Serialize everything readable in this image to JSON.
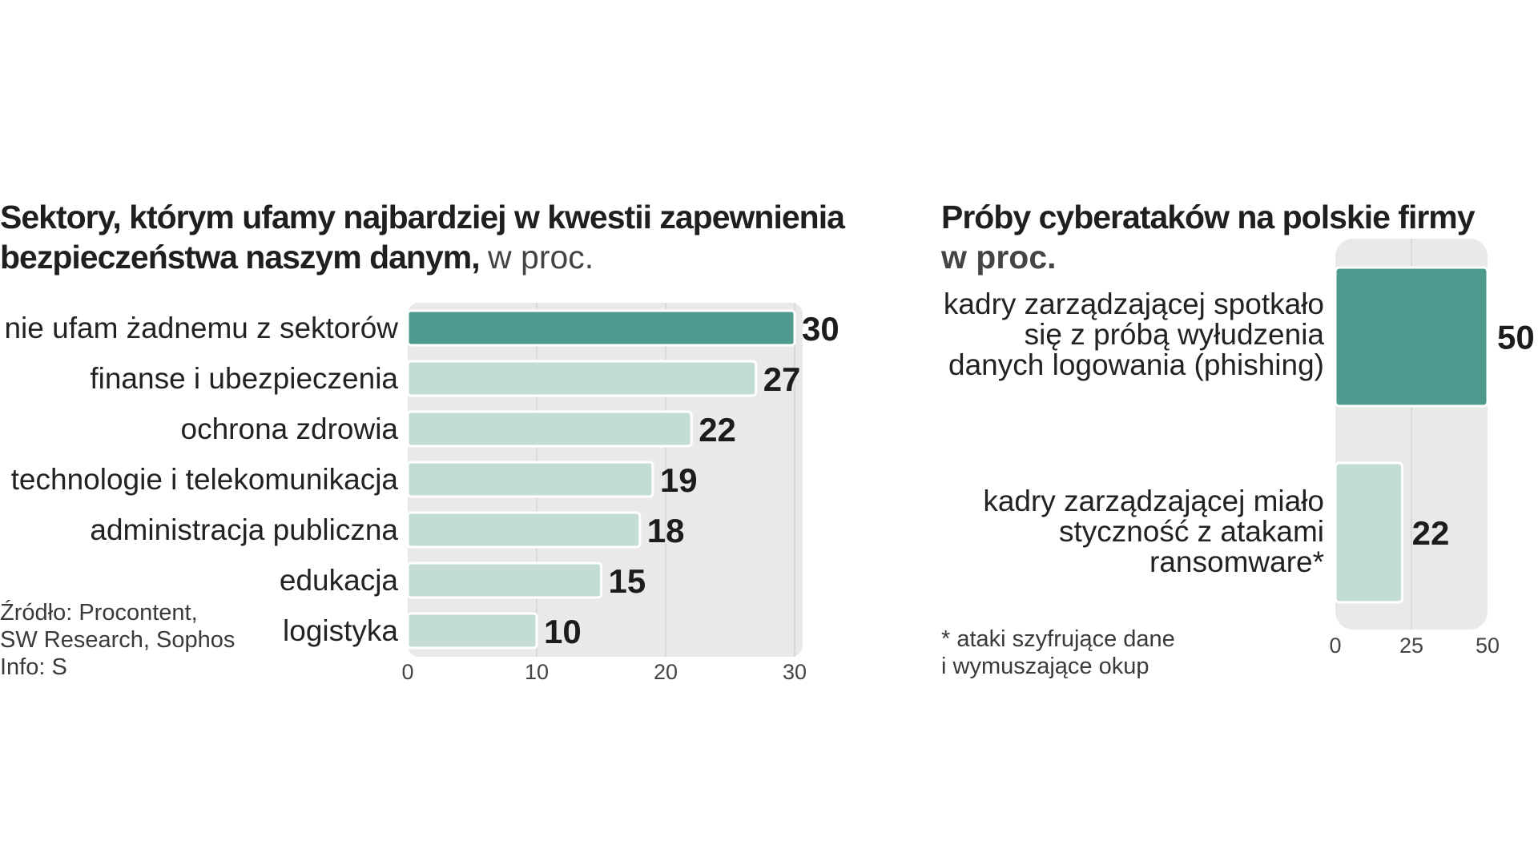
{
  "left_chart_title": {
    "bold": "Sektory, którym ufamy najbardziej w kwestii zapewnienia bezpieczeństwa naszym danym,",
    "normal": "w proc."
  },
  "right_chart_title": {
    "bold": "Próby cyberataków na polskie firmy",
    "normal": "w proc."
  },
  "source": {
    "line1": "Źródło: Procontent,",
    "line2": "SW Research, Sophos",
    "line3": "Info: S"
  },
  "footnote": {
    "line1": "* ataki szyfrujące dane",
    "line2": "i wymuszające okup"
  },
  "colors": {
    "highlight": "#4e9a8e",
    "normal": "#c3ddd6",
    "panel": "#e9e9e9",
    "grid": "#d4d4d4"
  },
  "chart_data": [
    {
      "type": "bar",
      "orientation": "horizontal",
      "title": "Sektory, którym ufamy najbardziej w kwestii zapewnienia bezpieczeństwa naszym danym, w proc.",
      "categories": [
        "nie ufam żadnemu z sektorów",
        "finanse i ubezpieczenia",
        "ochrona zdrowia",
        "technologie i telekomunikacja",
        "administracja publiczna",
        "edukacja",
        "logistyka"
      ],
      "values": [
        30,
        27,
        22,
        19,
        18,
        15,
        10
      ],
      "highlight_index": 0,
      "xlim": [
        0,
        30
      ],
      "xticks": [
        0,
        10,
        20,
        30
      ],
      "grid": true
    },
    {
      "type": "bar",
      "orientation": "horizontal",
      "title": "Próby cyberataków na polskie firmy, w proc.",
      "categories": [
        [
          "kadry zarządzającej spotkało",
          "się z próbą wyłudzenia",
          "danych logowania (phishing)"
        ],
        [
          "kadry zarządzającej miało",
          "styczność z atakami",
          "ransomware*"
        ]
      ],
      "values": [
        50,
        22
      ],
      "highlight_index": 0,
      "xlim": [
        0,
        50
      ],
      "xticks": [
        0,
        25,
        50
      ],
      "grid": true
    }
  ]
}
